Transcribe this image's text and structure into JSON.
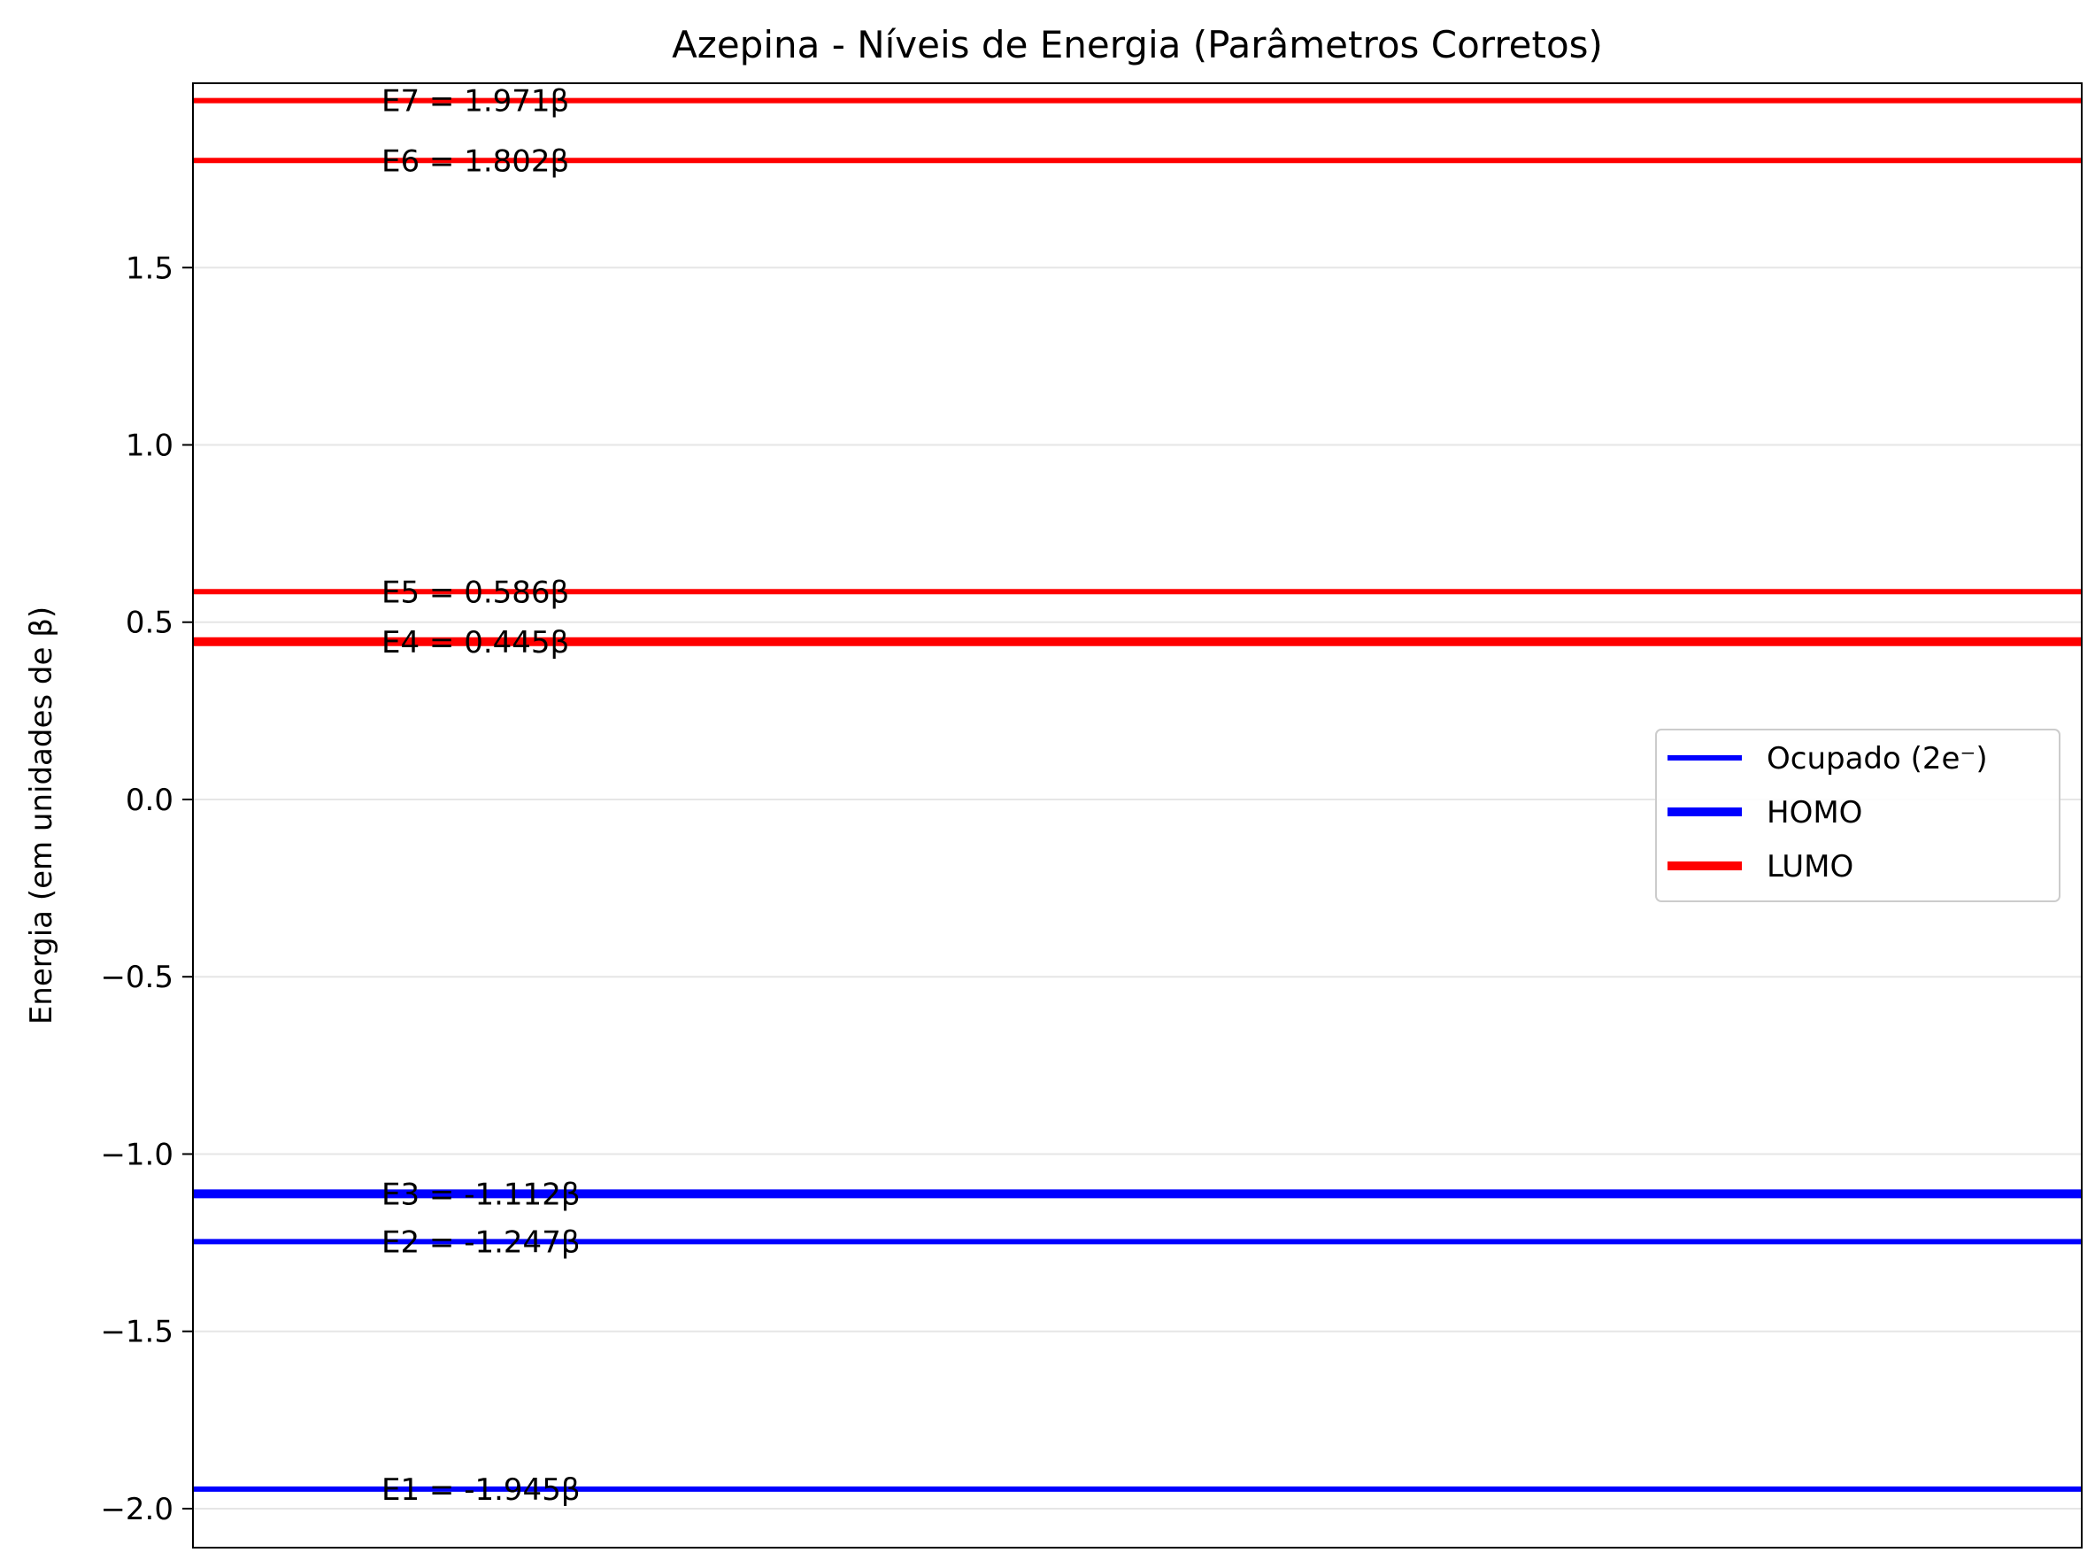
{
  "chart_data": {
    "type": "line",
    "title": "Azepina - Níveis de Energia (Parâmetros Corretos)",
    "xlabel": "",
    "ylabel": "Energia (em unidades de β)",
    "ylim": [
      -2.11,
      2.02
    ],
    "grid": "horizontal",
    "y_ticks": [
      {
        "value": 1.5,
        "label": "1.5"
      },
      {
        "value": 1.0,
        "label": "1.0"
      },
      {
        "value": 0.5,
        "label": "0.5"
      },
      {
        "value": 0.0,
        "label": "0.0"
      },
      {
        "value": -0.5,
        "label": "−0.5"
      },
      {
        "value": -1.0,
        "label": "−1.0"
      },
      {
        "value": -1.5,
        "label": "−1.5"
      },
      {
        "value": -2.0,
        "label": "−2.0"
      }
    ],
    "levels": [
      {
        "label": "E1 = -1.945β",
        "energy": -1.945,
        "kind": "occupied",
        "color": "#0000ff"
      },
      {
        "label": "E2 = -1.247β",
        "energy": -1.247,
        "kind": "occupied",
        "color": "#0000ff"
      },
      {
        "label": "E3 = -1.112β",
        "energy": -1.112,
        "kind": "homo",
        "color": "#0000ff"
      },
      {
        "label": "E4 = 0.445β",
        "energy": 0.445,
        "kind": "lumo",
        "color": "#ff0000"
      },
      {
        "label": "E5 = 0.586β",
        "energy": 0.586,
        "kind": "unoccupied",
        "color": "#ff0000"
      },
      {
        "label": "E6 = 1.802β",
        "energy": 1.802,
        "kind": "unoccupied",
        "color": "#ff0000"
      },
      {
        "label": "E7 = 1.971β",
        "energy": 1.971,
        "kind": "unoccupied",
        "color": "#ff0000"
      }
    ],
    "legend": {
      "placement": "center-right",
      "entries": [
        {
          "name": "Ocupado (2e⁻)",
          "color": "#0000ff",
          "style": "occupied"
        },
        {
          "name": "HOMO",
          "color": "#0000ff",
          "style": "homo"
        },
        {
          "name": "LUMO",
          "color": "#ff0000",
          "style": "lumo"
        }
      ]
    }
  }
}
